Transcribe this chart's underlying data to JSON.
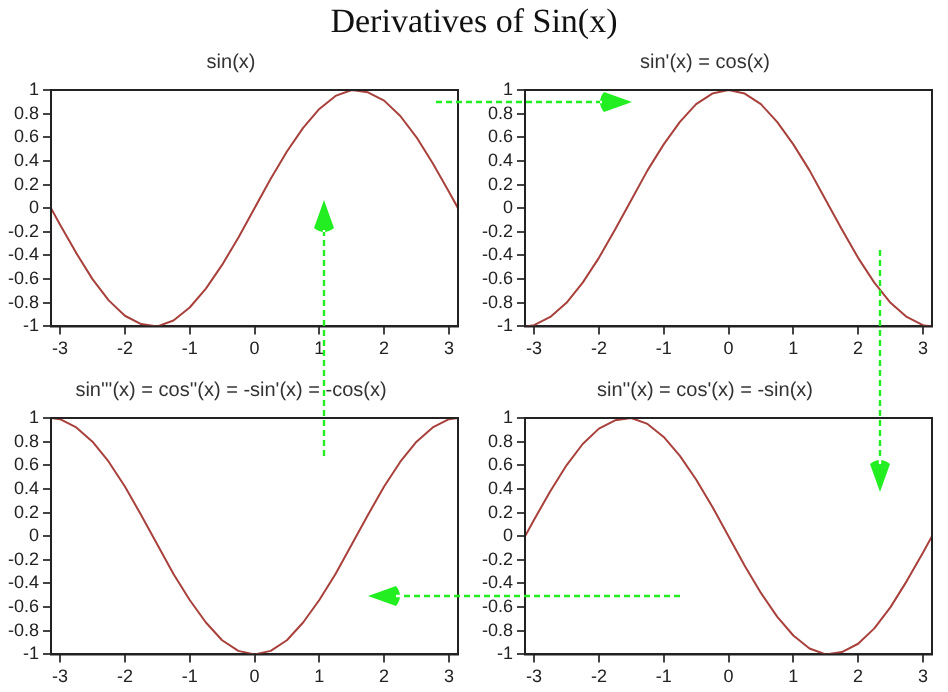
{
  "chart_data": [
    {
      "type": "other",
      "title": "Derivatives of Sin(x)"
    },
    {
      "type": "line",
      "title": "sin(x)",
      "x": [
        -3.14,
        -3,
        -2.75,
        -2.5,
        -2.25,
        -2,
        -1.75,
        -1.5,
        -1.25,
        -1,
        -0.75,
        -0.5,
        -0.25,
        0,
        0.25,
        0.5,
        0.75,
        1,
        1.25,
        1.5,
        1.75,
        2,
        2.25,
        2.5,
        2.75,
        3,
        3.14
      ],
      "xlim": [
        -3.14,
        3.14
      ],
      "xticks": [
        -3,
        -2,
        -1,
        0,
        1,
        2,
        3
      ],
      "ylim": [
        -1,
        1
      ],
      "yticks": [
        -1,
        -0.8,
        -0.6,
        -0.4,
        -0.2,
        0,
        0.2,
        0.4,
        0.6,
        0.8,
        1
      ],
      "series": [
        {
          "color": "#a8403c",
          "values": [
            0,
            -0.14,
            -0.38,
            -0.6,
            -0.78,
            -0.91,
            -0.98,
            -1.0,
            -0.95,
            -0.84,
            -0.68,
            -0.48,
            -0.25,
            0,
            0.25,
            0.48,
            0.68,
            0.84,
            0.95,
            1.0,
            0.98,
            0.91,
            0.78,
            0.6,
            0.38,
            0.14,
            0
          ]
        }
      ]
    },
    {
      "type": "line",
      "title": "sin'(x) = cos(x)",
      "x": [
        -3.14,
        -3,
        -2.75,
        -2.5,
        -2.25,
        -2,
        -1.75,
        -1.5,
        -1.25,
        -1,
        -0.75,
        -0.5,
        -0.25,
        0,
        0.25,
        0.5,
        0.75,
        1,
        1.25,
        1.5,
        1.75,
        2,
        2.25,
        2.5,
        2.75,
        3,
        3.14
      ],
      "xlim": [
        -3.14,
        3.14
      ],
      "xticks": [
        -3,
        -2,
        -1,
        0,
        1,
        2,
        3
      ],
      "ylim": [
        -1,
        1
      ],
      "yticks": [
        -1,
        -0.8,
        -0.6,
        -0.4,
        -0.2,
        0,
        0.2,
        0.4,
        0.6,
        0.8,
        1
      ],
      "series": [
        {
          "color": "#a8403c",
          "values": [
            -1,
            -0.99,
            -0.92,
            -0.8,
            -0.63,
            -0.42,
            -0.18,
            0.07,
            0.32,
            0.54,
            0.73,
            0.88,
            0.97,
            1,
            0.97,
            0.88,
            0.73,
            0.54,
            0.32,
            0.07,
            -0.18,
            -0.42,
            -0.63,
            -0.8,
            -0.92,
            -0.99,
            -1
          ]
        }
      ]
    },
    {
      "type": "line",
      "title": "sin'''(x) = cos''(x) = -sin'(x) = -cos(x)",
      "x": [
        -3.14,
        -3,
        -2.75,
        -2.5,
        -2.25,
        -2,
        -1.75,
        -1.5,
        -1.25,
        -1,
        -0.75,
        -0.5,
        -0.25,
        0,
        0.25,
        0.5,
        0.75,
        1,
        1.25,
        1.5,
        1.75,
        2,
        2.25,
        2.5,
        2.75,
        3,
        3.14
      ],
      "xlim": [
        -3.14,
        3.14
      ],
      "xticks": [
        -3,
        -2,
        -1,
        0,
        1,
        2,
        3
      ],
      "ylim": [
        -1,
        1
      ],
      "yticks": [
        -1,
        -0.8,
        -0.6,
        -0.4,
        -0.2,
        0,
        0.2,
        0.4,
        0.6,
        0.8,
        1
      ],
      "series": [
        {
          "color": "#a8403c",
          "values": [
            1,
            0.99,
            0.92,
            0.8,
            0.63,
            0.42,
            0.18,
            -0.07,
            -0.32,
            -0.54,
            -0.73,
            -0.88,
            -0.97,
            -1,
            -0.97,
            -0.88,
            -0.73,
            -0.54,
            -0.32,
            -0.07,
            0.18,
            0.42,
            0.63,
            0.8,
            0.92,
            0.99,
            1
          ]
        }
      ]
    },
    {
      "type": "line",
      "title": "sin''(x) = cos'(x) = -sin(x)",
      "x": [
        -3.14,
        -3,
        -2.75,
        -2.5,
        -2.25,
        -2,
        -1.75,
        -1.5,
        -1.25,
        -1,
        -0.75,
        -0.5,
        -0.25,
        0,
        0.25,
        0.5,
        0.75,
        1,
        1.25,
        1.5,
        1.75,
        2,
        2.25,
        2.5,
        2.75,
        3,
        3.14
      ],
      "xlim": [
        -3.14,
        3.14
      ],
      "xticks": [
        -3,
        -2,
        -1,
        0,
        1,
        2,
        3
      ],
      "ylim": [
        -1,
        1
      ],
      "yticks": [
        -1,
        -0.8,
        -0.6,
        -0.4,
        -0.2,
        0,
        0.2,
        0.4,
        0.6,
        0.8,
        1
      ],
      "series": [
        {
          "color": "#a8403c",
          "values": [
            0,
            0.14,
            0.38,
            0.6,
            0.78,
            0.91,
            0.98,
            1.0,
            0.95,
            0.84,
            0.68,
            0.48,
            0.25,
            0,
            -0.25,
            -0.48,
            -0.68,
            -0.84,
            -0.95,
            -1.0,
            -0.98,
            -0.91,
            -0.78,
            -0.6,
            -0.38,
            -0.14,
            0
          ]
        }
      ]
    }
  ]
}
